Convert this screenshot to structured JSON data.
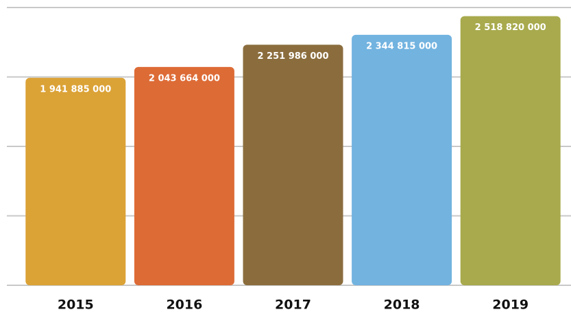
{
  "chart_data": {
    "type": "bar",
    "categories": [
      "2015",
      "2016",
      "2017",
      "2018",
      "2019"
    ],
    "values": [
      1941885000,
      2043664000,
      2251986000,
      2344815000,
      2518820000
    ],
    "value_labels": [
      "1 941 885 000",
      "2 043 664 000",
      "2 251 986 000",
      "2 344 815 000",
      "2 518 820 000"
    ],
    "colors": [
      "#dba236",
      "#dd6b36",
      "#8b6d3d",
      "#72b3e0",
      "#a8aa4d"
    ],
    "ylim": [
      0,
      2600000000
    ],
    "yticks": [
      0,
      650000000,
      1300000000,
      1950000000,
      2600000000
    ],
    "grid": true
  }
}
